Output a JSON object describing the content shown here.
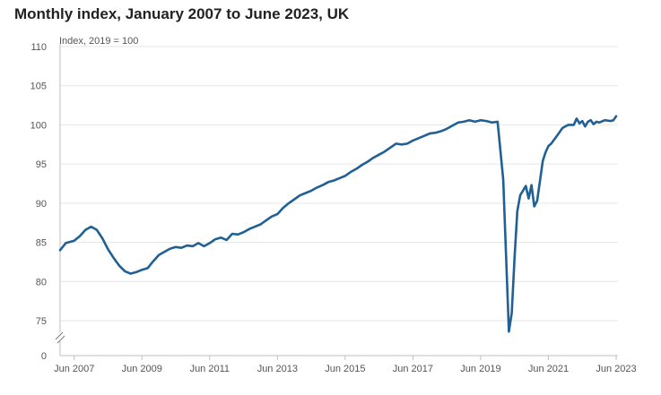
{
  "chart_data": {
    "type": "line",
    "title": "Monthly index, January 2007 to June 2023, UK",
    "unit_note": "Index, 2019 = 100",
    "xlabel": "",
    "ylabel": "Index, 2019 = 100",
    "ylim": [
      0,
      110
    ],
    "axis_break": true,
    "y_ticks": [
      110,
      105,
      100,
      95,
      90,
      85,
      80,
      75,
      0
    ],
    "x_ticks": [
      "Jun 2007",
      "Jun 2009",
      "Jun 2011",
      "Jun 2013",
      "Jun 2015",
      "Jun 2017",
      "Jun 2019",
      "Jun 2021",
      "Jun 2023"
    ],
    "start": "Jan 2007",
    "end": "Jun 2023",
    "grid": true,
    "legend": "none",
    "color": "#206095",
    "series": [
      {
        "name": "Monthly index",
        "points": [
          [
            "Jan 2007",
            84.0
          ],
          [
            "Mar 2007",
            84.9
          ],
          [
            "Jun 2007",
            85.2
          ],
          [
            "Aug 2007",
            85.8
          ],
          [
            "Oct 2007",
            86.6
          ],
          [
            "Dec 2007",
            87.0
          ],
          [
            "Feb 2008",
            86.6
          ],
          [
            "Apr 2008",
            85.5
          ],
          [
            "Jun 2008",
            84.1
          ],
          [
            "Aug 2008",
            83.0
          ],
          [
            "Oct 2008",
            82.0
          ],
          [
            "Dec 2008",
            81.3
          ],
          [
            "Feb 2009",
            81.0
          ],
          [
            "Apr 2009",
            81.2
          ],
          [
            "Jun 2009",
            81.5
          ],
          [
            "Aug 2009",
            81.7
          ],
          [
            "Oct 2009",
            82.6
          ],
          [
            "Dec 2009",
            83.4
          ],
          [
            "Feb 2010",
            83.8
          ],
          [
            "Apr 2010",
            84.2
          ],
          [
            "Jun 2010",
            84.4
          ],
          [
            "Aug 2010",
            84.3
          ],
          [
            "Oct 2010",
            84.6
          ],
          [
            "Dec 2010",
            84.5
          ],
          [
            "Feb 2011",
            84.9
          ],
          [
            "Apr 2011",
            84.5
          ],
          [
            "Jun 2011",
            84.9
          ],
          [
            "Aug 2011",
            85.4
          ],
          [
            "Oct 2011",
            85.6
          ],
          [
            "Dec 2011",
            85.3
          ],
          [
            "Feb 2012",
            86.1
          ],
          [
            "Apr 2012",
            86.0
          ],
          [
            "Jun 2012",
            86.3
          ],
          [
            "Aug 2012",
            86.7
          ],
          [
            "Oct 2012",
            87.0
          ],
          [
            "Dec 2012",
            87.3
          ],
          [
            "Feb 2013",
            87.8
          ],
          [
            "Apr 2013",
            88.3
          ],
          [
            "Jun 2013",
            88.6
          ],
          [
            "Aug 2013",
            89.4
          ],
          [
            "Oct 2013",
            90.0
          ],
          [
            "Dec 2013",
            90.5
          ],
          [
            "Feb 2014",
            91.0
          ],
          [
            "Apr 2014",
            91.3
          ],
          [
            "Jun 2014",
            91.6
          ],
          [
            "Aug 2014",
            92.0
          ],
          [
            "Oct 2014",
            92.3
          ],
          [
            "Dec 2014",
            92.7
          ],
          [
            "Feb 2015",
            92.9
          ],
          [
            "Apr 2015",
            93.2
          ],
          [
            "Jun 2015",
            93.5
          ],
          [
            "Aug 2015",
            94.0
          ],
          [
            "Oct 2015",
            94.4
          ],
          [
            "Dec 2015",
            94.9
          ],
          [
            "Feb 2016",
            95.3
          ],
          [
            "Apr 2016",
            95.8
          ],
          [
            "Jun 2016",
            96.2
          ],
          [
            "Aug 2016",
            96.6
          ],
          [
            "Oct 2016",
            97.1
          ],
          [
            "Dec 2016",
            97.6
          ],
          [
            "Feb 2017",
            97.5
          ],
          [
            "Apr 2017",
            97.6
          ],
          [
            "Jun 2017",
            98.0
          ],
          [
            "Aug 2017",
            98.3
          ],
          [
            "Oct 2017",
            98.6
          ],
          [
            "Dec 2017",
            98.9
          ],
          [
            "Feb 2018",
            99.0
          ],
          [
            "Apr 2018",
            99.2
          ],
          [
            "Jun 2018",
            99.5
          ],
          [
            "Aug 2018",
            99.9
          ],
          [
            "Oct 2018",
            100.3
          ],
          [
            "Dec 2018",
            100.4
          ],
          [
            "Feb 2019",
            100.6
          ],
          [
            "Apr 2019",
            100.4
          ],
          [
            "Jun 2019",
            100.6
          ],
          [
            "Aug 2019",
            100.5
          ],
          [
            "Oct 2019",
            100.3
          ],
          [
            "Dec 2019",
            100.4
          ],
          [
            "Feb 2020",
            93.0
          ],
          [
            "Apr 2020",
            73.6
          ],
          [
            "May 2020",
            76.0
          ],
          [
            "Jun 2020",
            83.0
          ],
          [
            "Jul 2020",
            89.0
          ],
          [
            "Aug 2020",
            91.0
          ],
          [
            "Oct 2020",
            92.2
          ],
          [
            "Nov 2020",
            90.6
          ],
          [
            "Dec 2020",
            92.3
          ],
          [
            "Jan 2021",
            89.6
          ],
          [
            "Feb 2021",
            90.3
          ],
          [
            "Mar 2021",
            92.8
          ],
          [
            "Apr 2021",
            95.4
          ],
          [
            "May 2021",
            96.5
          ],
          [
            "Jun 2021",
            97.3
          ],
          [
            "Jul 2021",
            97.6
          ],
          [
            "Sep 2021",
            98.6
          ],
          [
            "Nov 2021",
            99.6
          ],
          [
            "Jan 2022",
            100.0
          ],
          [
            "Mar 2022",
            100.0
          ],
          [
            "Apr 2022",
            100.8
          ],
          [
            "May 2022",
            100.2
          ],
          [
            "Jun 2022",
            100.5
          ],
          [
            "Jul 2022",
            99.8
          ],
          [
            "Aug 2022",
            100.4
          ],
          [
            "Sep 2022",
            100.6
          ],
          [
            "Oct 2022",
            100.1
          ],
          [
            "Nov 2022",
            100.4
          ],
          [
            "Dec 2022",
            100.3
          ],
          [
            "Feb 2023",
            100.6
          ],
          [
            "Apr 2023",
            100.5
          ],
          [
            "May 2023",
            100.6
          ],
          [
            "Jun 2023",
            101.1
          ]
        ]
      }
    ]
  }
}
